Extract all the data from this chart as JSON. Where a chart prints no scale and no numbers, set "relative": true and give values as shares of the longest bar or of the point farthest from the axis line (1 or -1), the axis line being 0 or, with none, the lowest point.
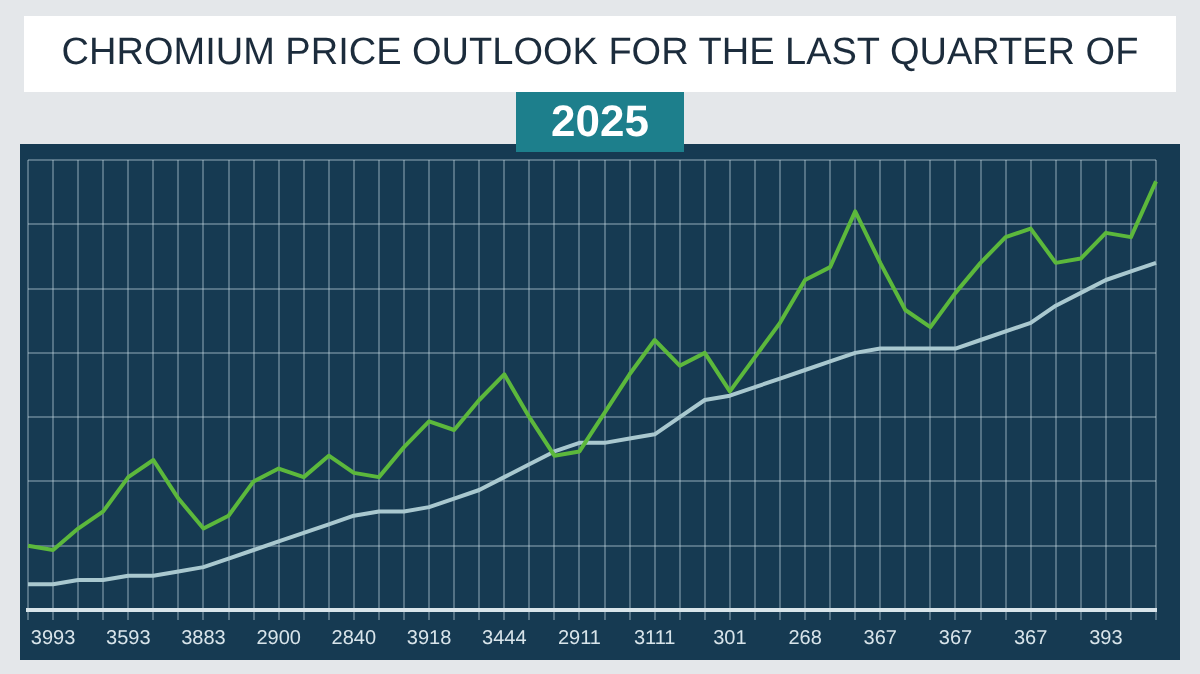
{
  "chart_data": {
    "type": "line",
    "title": "CHROMIUM PRICE OUTLOOK FOR THE LAST QUARTER OF",
    "subtitle": "2025",
    "relative": true,
    "grid": true,
    "legend": false,
    "marker": "none",
    "tick_labels": "x",
    "categories": [
      null,
      "3993",
      null,
      null,
      "3593",
      null,
      null,
      "3883",
      null,
      null,
      "2900",
      null,
      null,
      "2840",
      null,
      null,
      "3918",
      null,
      null,
      "3444",
      null,
      null,
      "2911",
      null,
      null,
      "3111",
      null,
      null,
      "301",
      null,
      null,
      "268",
      null,
      null,
      "367",
      null,
      null,
      "367",
      null,
      null,
      "367",
      null,
      null,
      "393",
      null,
      null
    ],
    "series": [
      {
        "color": "#5cb83c",
        "values": [
          0.15,
          0.14,
          0.19,
          0.23,
          0.31,
          0.35,
          0.26,
          0.19,
          0.22,
          0.3,
          0.33,
          0.31,
          0.36,
          0.32,
          0.31,
          0.38,
          0.44,
          0.42,
          0.49,
          0.55,
          0.45,
          0.36,
          0.37,
          0.46,
          0.55,
          0.63,
          0.57,
          0.6,
          0.51,
          0.59,
          0.67,
          0.77,
          0.8,
          0.93,
          0.81,
          0.7,
          0.66,
          0.74,
          0.81,
          0.87,
          0.89,
          0.81,
          0.82,
          0.88,
          0.87,
          1
        ]
      },
      {
        "color": "#a9c8cf",
        "values": [
          0.06,
          0.06,
          0.07,
          0.07,
          0.08,
          0.08,
          0.09,
          0.1,
          0.12,
          0.14,
          0.16,
          0.18,
          0.2,
          0.22,
          0.23,
          0.23,
          0.24,
          0.26,
          0.28,
          0.31,
          0.34,
          0.37,
          0.39,
          0.39,
          0.4,
          0.41,
          0.45,
          0.49,
          0.5,
          0.52,
          0.54,
          0.56,
          0.58,
          0.6,
          0.61,
          0.61,
          0.61,
          0.61,
          0.63,
          0.65,
          0.67,
          0.71,
          0.74,
          0.77,
          0.79,
          0.81
        ]
      }
    ]
  }
}
